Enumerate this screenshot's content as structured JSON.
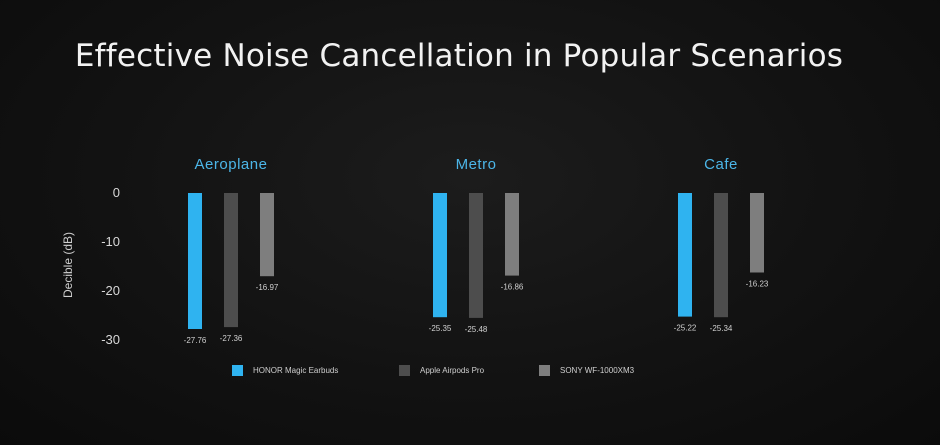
{
  "title": "Effective Noise Cancellation in Popular Scenarios",
  "chart_data": {
    "type": "bar",
    "title": "Effective Noise Cancellation in Popular Scenarios",
    "ylabel": "Decible (dB)",
    "xlabel": "",
    "ylim": [
      -30,
      0
    ],
    "yticks": [
      "0",
      "-10",
      "-20",
      "-30"
    ],
    "ytick_values": [
      0,
      -10,
      -20,
      -30
    ],
    "grid": false,
    "legend_position": "bottom",
    "categories": [
      "Aeroplane",
      "Metro",
      "Cafe"
    ],
    "series": [
      {
        "name": "HONOR Magic Earbuds",
        "color": "#2fb3f0",
        "values": [
          -27.76,
          -25.35,
          -25.22
        ],
        "labels": [
          "-27.76",
          "-25.35",
          "-25.22"
        ]
      },
      {
        "name": "Apple Airpods Pro",
        "color": "#4d4d4d",
        "values": [
          -27.36,
          -25.48,
          -25.34
        ],
        "labels": [
          "-27.36",
          "-25.48",
          "-25.34"
        ]
      },
      {
        "name": "SONY WF-1000XM3",
        "color": "#7e7e7e",
        "values": [
          -16.97,
          -16.86,
          -16.23
        ],
        "labels": [
          "-16.97",
          "-16.86",
          "-16.23"
        ]
      }
    ]
  }
}
